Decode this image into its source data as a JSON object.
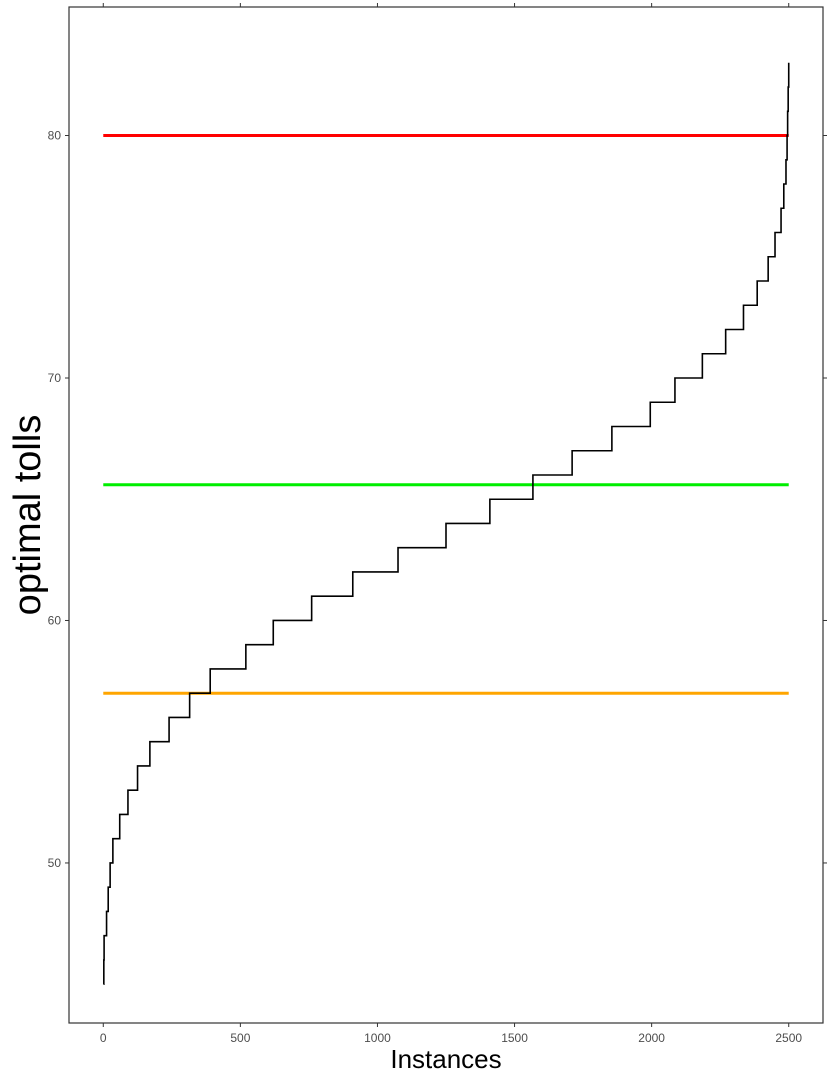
{
  "chart_data": {
    "type": "line",
    "title": "",
    "xlabel": "Instances",
    "ylabel": "optimal tolls",
    "xlim": [
      -125,
      2625
    ],
    "ylim": [
      43.4,
      85.3
    ],
    "x_ticks": [
      0,
      500,
      1000,
      1500,
      2000,
      2500
    ],
    "y_ticks": [
      50,
      60,
      70,
      80
    ],
    "grid": false,
    "legend": "none",
    "series": [
      {
        "color": "#000000",
        "kind": "step",
        "points": [
          [
            1,
            45
          ],
          [
            2,
            46
          ],
          [
            3,
            47
          ],
          [
            12,
            48
          ],
          [
            18,
            49
          ],
          [
            25,
            50
          ],
          [
            35,
            51
          ],
          [
            60,
            52
          ],
          [
            90,
            53
          ],
          [
            125,
            54
          ],
          [
            170,
            55
          ],
          [
            240,
            56
          ],
          [
            315,
            57
          ],
          [
            390,
            58
          ],
          [
            520,
            59
          ],
          [
            620,
            60
          ],
          [
            760,
            61
          ],
          [
            910,
            62
          ],
          [
            1075,
            63
          ],
          [
            1250,
            64
          ],
          [
            1410,
            65
          ],
          [
            1567,
            66
          ],
          [
            1710,
            67
          ],
          [
            1855,
            68
          ],
          [
            1995,
            69
          ],
          [
            2085,
            70
          ],
          [
            2185,
            71
          ],
          [
            2270,
            72
          ],
          [
            2335,
            73
          ],
          [
            2385,
            74
          ],
          [
            2425,
            75
          ],
          [
            2450,
            76
          ],
          [
            2472,
            77
          ],
          [
            2482,
            78
          ],
          [
            2490,
            79
          ],
          [
            2494,
            80
          ],
          [
            2496,
            81
          ],
          [
            2498,
            82
          ],
          [
            2500,
            83
          ]
        ]
      }
    ],
    "reference_lines": [
      {
        "color": "#ff0000",
        "x": [
          0,
          2500
        ],
        "y": 80
      },
      {
        "color": "#00ee00",
        "x": [
          0,
          2500
        ],
        "y": 65.6
      },
      {
        "color": "#ffa500",
        "x": [
          0,
          2500
        ],
        "y": 57
      }
    ]
  }
}
